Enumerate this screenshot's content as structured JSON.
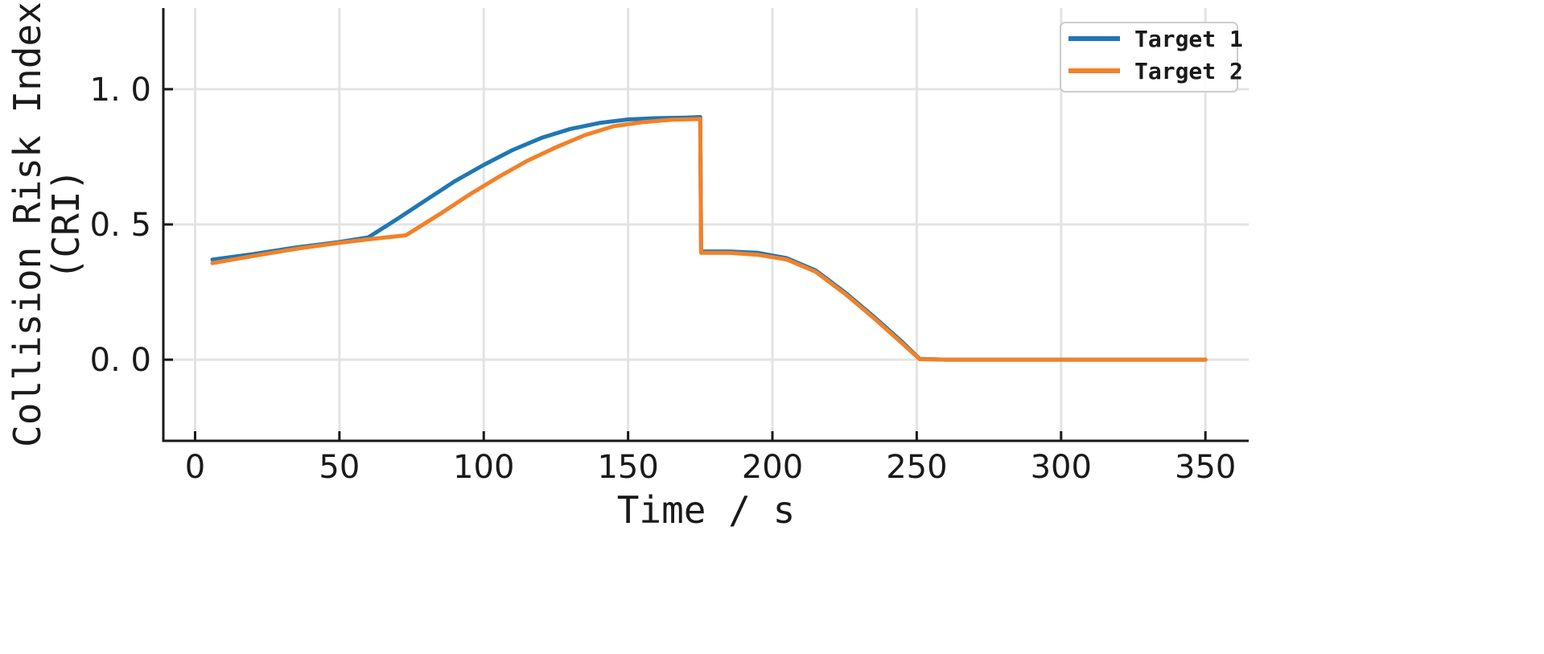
{
  "chart_data": {
    "type": "line",
    "xlabel": "Time / s",
    "ylabel": [
      "Collision Risk Index",
      "(CRI)"
    ],
    "xlim": [
      -11,
      365
    ],
    "ylim": [
      -0.3,
      1.3
    ],
    "xticks": [
      0,
      50,
      100,
      150,
      200,
      250,
      300,
      350
    ],
    "xtick_labels": [
      "0",
      "50",
      "100",
      "150",
      "200",
      "250",
      "300",
      "350"
    ],
    "yticks": [
      0.0,
      0.5,
      1.0
    ],
    "ytick_labels": [
      "0. 0",
      "0. 5",
      "1. 0"
    ],
    "grid": true,
    "legend_position": "top-right",
    "series": [
      {
        "name": "Target 1",
        "color": "#1f77b4",
        "points": [
          [
            6,
            0.37
          ],
          [
            20,
            0.39
          ],
          [
            35,
            0.415
          ],
          [
            50,
            0.435
          ],
          [
            60,
            0.452
          ],
          [
            70,
            0.52
          ],
          [
            80,
            0.59
          ],
          [
            90,
            0.66
          ],
          [
            100,
            0.72
          ],
          [
            110,
            0.775
          ],
          [
            120,
            0.82
          ],
          [
            130,
            0.853
          ],
          [
            140,
            0.875
          ],
          [
            150,
            0.888
          ],
          [
            160,
            0.893
          ],
          [
            170,
            0.895
          ],
          [
            175,
            0.897
          ],
          [
            175.3,
            0.4
          ],
          [
            185,
            0.4
          ],
          [
            195,
            0.395
          ],
          [
            205,
            0.375
          ],
          [
            215,
            0.33
          ],
          [
            225,
            0.25
          ],
          [
            235,
            0.16
          ],
          [
            245,
            0.065
          ],
          [
            251,
            0.003
          ],
          [
            260,
            0.0
          ],
          [
            300,
            0.0
          ],
          [
            350,
            0.0
          ]
        ]
      },
      {
        "name": "Target 2",
        "color": "#f28128",
        "points": [
          [
            6,
            0.357
          ],
          [
            20,
            0.383
          ],
          [
            35,
            0.41
          ],
          [
            50,
            0.432
          ],
          [
            60,
            0.445
          ],
          [
            73,
            0.46
          ],
          [
            85,
            0.54
          ],
          [
            95,
            0.61
          ],
          [
            105,
            0.675
          ],
          [
            115,
            0.735
          ],
          [
            125,
            0.785
          ],
          [
            135,
            0.83
          ],
          [
            145,
            0.863
          ],
          [
            155,
            0.878
          ],
          [
            165,
            0.887
          ],
          [
            175,
            0.89
          ],
          [
            175.3,
            0.395
          ],
          [
            185,
            0.395
          ],
          [
            195,
            0.388
          ],
          [
            205,
            0.37
          ],
          [
            215,
            0.325
          ],
          [
            225,
            0.245
          ],
          [
            235,
            0.155
          ],
          [
            245,
            0.06
          ],
          [
            251,
            0.002
          ],
          [
            260,
            0.0
          ],
          [
            300,
            0.0
          ],
          [
            350,
            0.0
          ]
        ]
      }
    ]
  }
}
